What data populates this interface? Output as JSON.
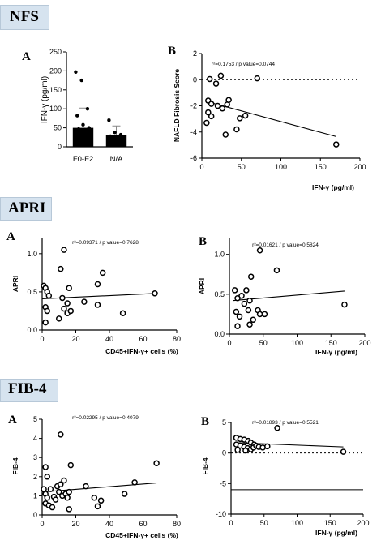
{
  "sections": {
    "nfs": {
      "title": "NFS",
      "panel_a": "A",
      "panel_b": "B"
    },
    "apri": {
      "title": "APRI",
      "panel_a": "A",
      "panel_b": "B"
    },
    "fib4": {
      "title": "FIB-4",
      "panel_a": "A",
      "panel_b": "B"
    }
  },
  "chart_data": [
    {
      "id": "nfs-a",
      "type": "bar",
      "categories": [
        "F0-F2",
        "N/A"
      ],
      "values": [
        50,
        30
      ],
      "error_upper": [
        102,
        55
      ],
      "points": [
        [
          197,
          175,
          100,
          82,
          58,
          50,
          47,
          45,
          42,
          40,
          38,
          36,
          34,
          30,
          22,
          20,
          15,
          12,
          8
        ],
        [
          70,
          38,
          32,
          28,
          15
        ]
      ],
      "ylabel": "IFN-γ (pg/ml)",
      "ylim": [
        0,
        250
      ],
      "yticks": [
        0,
        50,
        100,
        150,
        200,
        250
      ]
    },
    {
      "id": "nfs-b",
      "type": "scatter",
      "annotation": "r²=0.1753 / p value=0.0744",
      "xlabel": "IFN-γ (pg/ml)",
      "ylabel": "NAFLD Fibrosis Score",
      "xlim": [
        0,
        200
      ],
      "ylim": [
        -6,
        2
      ],
      "xticks": [
        0,
        50,
        100,
        150,
        200
      ],
      "yticks": [
        -6,
        -4,
        -2,
        0,
        2
      ],
      "points": [
        [
          10,
          0.05
        ],
        [
          18,
          -0.3
        ],
        [
          24,
          0.3
        ],
        [
          70,
          0.1
        ],
        [
          8,
          -1.6
        ],
        [
          12,
          -1.85
        ],
        [
          20,
          -2.0
        ],
        [
          26,
          -2.2
        ],
        [
          32,
          -1.9
        ],
        [
          34,
          -1.55
        ],
        [
          8,
          -2.5
        ],
        [
          12,
          -2.8
        ],
        [
          6,
          -3.3
        ],
        [
          48,
          -2.95
        ],
        [
          55,
          -2.75
        ],
        [
          44,
          -3.8
        ],
        [
          30,
          -4.2
        ],
        [
          170,
          -4.95
        ]
      ],
      "fit": [
        [
          5,
          -1.65
        ],
        [
          170,
          -4.35
        ]
      ],
      "ref_line": 0
    },
    {
      "id": "apri-a",
      "type": "scatter",
      "annotation": "r²=0.09371 / p value=0.7628",
      "xlabel": "CD45+IFN-γ+ cells (%)",
      "ylabel": "APRI",
      "xlim": [
        0,
        80
      ],
      "ylim": [
        0,
        1.2
      ],
      "xticks": [
        0,
        20,
        40,
        60,
        80
      ],
      "yticks": [
        0.0,
        0.5,
        1.0
      ],
      "points": [
        [
          1,
          0.58
        ],
        [
          2,
          0.55
        ],
        [
          3,
          0.5
        ],
        [
          2,
          0.3
        ],
        [
          3,
          0.25
        ],
        [
          2,
          0.1
        ],
        [
          4,
          0.45
        ],
        [
          11,
          0.8
        ],
        [
          13,
          1.05
        ],
        [
          13,
          0.28
        ],
        [
          15,
          0.22
        ],
        [
          17,
          0.25
        ],
        [
          12,
          0.42
        ],
        [
          15,
          0.35
        ],
        [
          16,
          0.55
        ],
        [
          10,
          0.15
        ],
        [
          25,
          0.37
        ],
        [
          33,
          0.33
        ],
        [
          33,
          0.6
        ],
        [
          36,
          0.75
        ],
        [
          48,
          0.22
        ],
        [
          67,
          0.48
        ]
      ],
      "fit": [
        [
          0,
          0.41
        ],
        [
          68,
          0.48
        ]
      ]
    },
    {
      "id": "apri-b",
      "type": "scatter",
      "annotation": "r²=0.01621 / p value=0.5824",
      "xlabel": "IFN-γ (pg/ml)",
      "ylabel": "APRI",
      "xlim": [
        0,
        200
      ],
      "ylim": [
        0,
        1.2
      ],
      "xticks": [
        0,
        50,
        100,
        150,
        200
      ],
      "yticks": [
        0.0,
        0.5,
        1.0
      ],
      "points": [
        [
          8,
          0.55
        ],
        [
          12,
          0.45
        ],
        [
          18,
          0.48
        ],
        [
          22,
          0.38
        ],
        [
          10,
          0.28
        ],
        [
          15,
          0.22
        ],
        [
          12,
          0.1
        ],
        [
          25,
          0.55
        ],
        [
          30,
          0.42
        ],
        [
          32,
          0.72
        ],
        [
          28,
          0.3
        ],
        [
          35,
          0.18
        ],
        [
          30,
          0.12
        ],
        [
          42,
          0.3
        ],
        [
          45,
          0.25
        ],
        [
          52,
          0.25
        ],
        [
          45,
          1.05
        ],
        [
          70,
          0.8
        ],
        [
          170,
          0.37
        ]
      ],
      "fit": [
        [
          5,
          0.42
        ],
        [
          170,
          0.54
        ]
      ]
    },
    {
      "id": "fib4-a",
      "type": "scatter",
      "annotation": "r²=0.02295 / p value=0.4079",
      "xlabel": "CD45+IFN-γ+ cells (%)",
      "ylabel": "FIB-4",
      "xlim": [
        0,
        80
      ],
      "ylim": [
        0,
        5
      ],
      "xticks": [
        0,
        20,
        40,
        60,
        80
      ],
      "yticks": [
        0,
        1,
        2,
        3,
        4,
        5
      ],
      "points": [
        [
          2,
          2.5
        ],
        [
          3,
          2.0
        ],
        [
          1,
          1.35
        ],
        [
          2,
          1.1
        ],
        [
          3,
          0.9
        ],
        [
          2,
          0.6
        ],
        [
          4,
          0.5
        ],
        [
          5,
          1.35
        ],
        [
          7,
          0.95
        ],
        [
          6,
          0.4
        ],
        [
          8,
          0.8
        ],
        [
          9,
          1.5
        ],
        [
          10,
          1.2
        ],
        [
          11,
          1.6
        ],
        [
          12,
          1.0
        ],
        [
          11,
          4.2
        ],
        [
          13,
          1.8
        ],
        [
          14,
          1.1
        ],
        [
          15,
          0.9
        ],
        [
          16,
          0.3
        ],
        [
          16,
          1.2
        ],
        [
          17,
          2.6
        ],
        [
          26,
          1.5
        ],
        [
          31,
          0.9
        ],
        [
          33,
          0.45
        ],
        [
          35,
          0.75
        ],
        [
          49,
          1.1
        ],
        [
          55,
          1.7
        ],
        [
          68,
          2.7
        ]
      ],
      "fit": [
        [
          0,
          1.2
        ],
        [
          68,
          1.67
        ]
      ]
    },
    {
      "id": "fib4-b",
      "type": "scatter",
      "annotation": "r²=0.01893 / p value=0.5521",
      "xlabel": "IFN-γ (pg/ml)",
      "ylabel": "FIB-4",
      "xlim": [
        0,
        200
      ],
      "ylim": [
        -10,
        5
      ],
      "xticks": [
        0,
        50,
        100,
        150,
        200
      ],
      "yticks": [
        -10,
        -5,
        0,
        5
      ],
      "points": [
        [
          8,
          2.5
        ],
        [
          14,
          2.3
        ],
        [
          20,
          2.2
        ],
        [
          26,
          2.0
        ],
        [
          30,
          1.7
        ],
        [
          35,
          1.4
        ],
        [
          8,
          1.4
        ],
        [
          14,
          1.2
        ],
        [
          20,
          1.0
        ],
        [
          25,
          0.8
        ],
        [
          30,
          0.6
        ],
        [
          34,
          0.9
        ],
        [
          38,
          1.2
        ],
        [
          42,
          1.0
        ],
        [
          48,
          0.9
        ],
        [
          55,
          1.1
        ],
        [
          10,
          0.5
        ],
        [
          22,
          0.4
        ],
        [
          70,
          4.1
        ],
        [
          170,
          0.2
        ]
      ],
      "fit": [
        [
          5,
          1.7
        ],
        [
          170,
          1.0
        ]
      ],
      "ref_line": 0,
      "solid_line": -6
    }
  ]
}
